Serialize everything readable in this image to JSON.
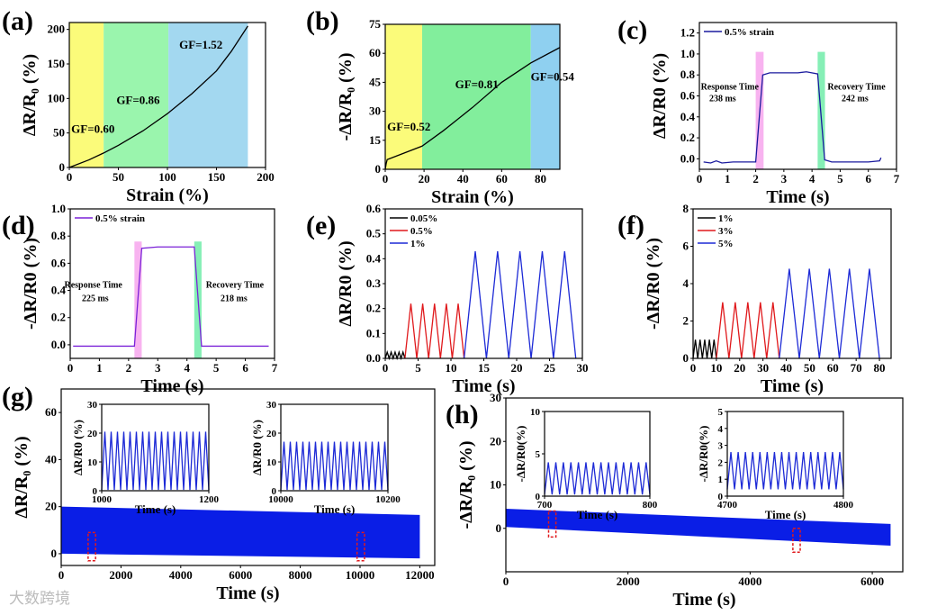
{
  "watermark": "大数跨境",
  "chart_data": [
    {
      "id": "a",
      "label": "(a)",
      "type": "line",
      "xlabel": "Strain (%)",
      "ylabel": "ΔR/R₀ (%)",
      "xlim": [
        0,
        200
      ],
      "ylim": [
        0,
        210
      ],
      "xticks": [
        0,
        50,
        100,
        150,
        200
      ],
      "yticks": [
        0,
        50,
        100,
        150,
        200
      ],
      "regions": [
        {
          "x": [
            0,
            35
          ],
          "color": "#fbfb7a"
        },
        {
          "x": [
            35,
            101
          ],
          "color": "#9af5ad"
        },
        {
          "x": [
            101,
            182
          ],
          "color": "#a3d8f0"
        }
      ],
      "series": [
        {
          "name": "curve",
          "color": "#000",
          "x": [
            0,
            20,
            35,
            50,
            75,
            100,
            125,
            150,
            165,
            182
          ],
          "y": [
            0,
            11,
            21,
            32,
            53,
            78,
            107,
            140,
            168,
            205
          ]
        }
      ],
      "annotations": [
        {
          "text": "GF=0.60",
          "x": 2,
          "y": 50
        },
        {
          "text": "GF=0.86",
          "x": 48,
          "y": 92
        },
        {
          "text": "GF=1.52",
          "x": 112,
          "y": 172
        }
      ]
    },
    {
      "id": "b",
      "label": "(b)",
      "type": "line",
      "xlabel": "Strain (%)",
      "ylabel": "-ΔR/R₀ (%)",
      "xlim": [
        0,
        90
      ],
      "ylim": [
        0,
        75
      ],
      "xticks": [
        0,
        20,
        40,
        60,
        80
      ],
      "yticks": [
        0,
        15,
        30,
        45,
        60,
        75
      ],
      "regions": [
        {
          "x": [
            0,
            19
          ],
          "color": "#fbfb7a"
        },
        {
          "x": [
            19,
            75
          ],
          "color": "#82ee9c"
        },
        {
          "x": [
            75,
            90
          ],
          "color": "#8fd0f0"
        }
      ],
      "series": [
        {
          "name": "curve",
          "color": "#000",
          "x": [
            0,
            0.5,
            1,
            19,
            30,
            45,
            60,
            75,
            90
          ],
          "y": [
            0,
            3,
            5,
            12,
            20,
            32,
            45,
            55,
            63
          ]
        }
      ],
      "annotations": [
        {
          "text": "GF=0.52",
          "x": 1,
          "y": 20
        },
        {
          "text": "GF=0.81",
          "x": 36,
          "y": 42
        },
        {
          "text": "GF=0.54",
          "x": 75,
          "y": 46
        }
      ]
    },
    {
      "id": "c",
      "label": "(c)",
      "type": "line",
      "xlabel": "Time (s)",
      "ylabel": "ΔR/R0 (%)",
      "xlim": [
        0,
        7
      ],
      "ylim": [
        -0.1,
        1.3
      ],
      "xticks": [
        0,
        1,
        2,
        3,
        4,
        5,
        6,
        7
      ],
      "yticks": [
        0.0,
        0.2,
        0.4,
        0.6,
        0.8,
        1.0,
        1.2
      ],
      "ydecimals": 1,
      "regions": [
        {
          "x": [
            2.0,
            2.28
          ],
          "y": [
            -0.1,
            1.02
          ],
          "color": "#f8b3f0"
        },
        {
          "x": [
            4.2,
            4.46
          ],
          "y": [
            -0.1,
            1.02
          ],
          "color": "#86efb6"
        }
      ],
      "series": [
        {
          "name": "0.5% strain",
          "color": "#1a1a9e",
          "x": [
            0.15,
            0.4,
            0.6,
            0.8,
            1.2,
            1.6,
            2.0,
            2.25,
            2.5,
            3.5,
            3.8,
            4.2,
            4.45,
            4.7,
            5.5,
            6.0,
            6.4,
            6.45
          ],
          "y": [
            -0.03,
            -0.04,
            -0.02,
            -0.04,
            -0.03,
            -0.03,
            -0.03,
            0.8,
            0.82,
            0.82,
            0.83,
            0.81,
            -0.01,
            -0.03,
            -0.03,
            -0.03,
            -0.02,
            0.01
          ]
        }
      ],
      "legend": true,
      "annotations": [
        {
          "text": "Response Time",
          "x": 0.05,
          "y": 0.66
        },
        {
          "text": "238 ms",
          "x": 0.35,
          "y": 0.55
        },
        {
          "text": "Recovery Time",
          "x": 4.55,
          "y": 0.66
        },
        {
          "text": "242 ms",
          "x": 5.05,
          "y": 0.55
        }
      ]
    },
    {
      "id": "d",
      "label": "(d)",
      "type": "line",
      "xlabel": "Time (s)",
      "ylabel": "-ΔR/R0 (%)",
      "xlim": [
        0,
        7
      ],
      "ylim": [
        -0.1,
        1.0
      ],
      "xticks": [
        0,
        1,
        2,
        3,
        4,
        5,
        6,
        7
      ],
      "yticks": [
        0.0,
        0.2,
        0.4,
        0.6,
        0.8,
        1.0
      ],
      "ydecimals": 1,
      "regions": [
        {
          "x": [
            2.2,
            2.45
          ],
          "y": [
            -0.1,
            0.76
          ],
          "color": "#f8b3f0"
        },
        {
          "x": [
            4.25,
            4.5
          ],
          "y": [
            -0.1,
            0.76
          ],
          "color": "#86efb6"
        }
      ],
      "series": [
        {
          "name": "0.5% strain",
          "color": "#7b22d8",
          "x": [
            0.1,
            1.0,
            2.2,
            2.45,
            3.0,
            4.25,
            4.5,
            5.5,
            6.8
          ],
          "y": [
            -0.01,
            -0.01,
            -0.01,
            0.71,
            0.72,
            0.72,
            -0.01,
            -0.01,
            -0.01
          ]
        }
      ],
      "legend": true,
      "annotations": [
        {
          "text": "Response Time",
          "x": -0.2,
          "y": 0.42
        },
        {
          "text": "225 ms",
          "x": 0.4,
          "y": 0.32
        },
        {
          "text": "Recovery Time",
          "x": 4.65,
          "y": 0.42
        },
        {
          "text": "218 ms",
          "x": 5.15,
          "y": 0.32
        }
      ]
    },
    {
      "id": "e",
      "label": "(e)",
      "type": "line",
      "xlabel": "Time (s)",
      "ylabel": "ΔR/R0 (%)",
      "xlim": [
        0,
        30
      ],
      "ylim": [
        0,
        0.6
      ],
      "xticks": [
        0,
        5,
        10,
        15,
        20,
        25,
        30
      ],
      "yticks": [
        0.0,
        0.1,
        0.2,
        0.3,
        0.4,
        0.5,
        0.6
      ],
      "ydecimals": 1,
      "series": [
        {
          "name": "0.05%",
          "color": "#000",
          "wave": {
            "x_start": 0,
            "x_end": 3,
            "cycles": 5,
            "min": 0,
            "max": 0.025
          }
        },
        {
          "name": "0.5%",
          "color": "#e0191c",
          "wave": {
            "x_start": 3,
            "x_end": 12,
            "cycles": 5,
            "min": 0,
            "max": 0.22
          }
        },
        {
          "name": "1%",
          "color": "#1d2ad6",
          "wave": {
            "x_start": 12,
            "x_end": 29,
            "cycles": 5,
            "min": 0,
            "max": 0.43
          }
        }
      ],
      "legend": true
    },
    {
      "id": "f",
      "label": "(f)",
      "type": "line",
      "xlabel": "Time (s)",
      "ylabel": "-ΔR/R0 (%)",
      "xlim": [
        0,
        85
      ],
      "ylim": [
        0,
        8
      ],
      "xticks": [
        0,
        10,
        20,
        30,
        40,
        50,
        60,
        70,
        80
      ],
      "yticks": [
        0,
        2,
        4,
        6,
        8
      ],
      "series": [
        {
          "name": "1%",
          "color": "#000",
          "wave": {
            "x_start": 0,
            "x_end": 10,
            "cycles": 5,
            "min": 0,
            "max": 1
          }
        },
        {
          "name": "3%",
          "color": "#e0191c",
          "wave": {
            "x_start": 10,
            "x_end": 37,
            "cycles": 5,
            "min": 0,
            "max": 3
          }
        },
        {
          "name": "5%",
          "color": "#1d2ad6",
          "wave": {
            "x_start": 37,
            "x_end": 80,
            "cycles": 5,
            "min": 0,
            "max": 4.8
          }
        }
      ],
      "legend": true
    },
    {
      "id": "g",
      "label": "(g)",
      "type": "area",
      "xlabel": "Time (s)",
      "ylabel": "ΔR/R₀ (%)",
      "xlim": [
        0,
        12500
      ],
      "ylim": [
        -5,
        70
      ],
      "xticks": [
        0,
        2000,
        4000,
        6000,
        8000,
        10000,
        12000
      ],
      "yticks": [
        0,
        20,
        40,
        60
      ],
      "series": [
        {
          "name": "cycling",
          "color": "#0a1ee6",
          "band": {
            "x": [
              0,
              12000
            ],
            "upper": [
              20,
              16.5
            ],
            "lower": [
              0,
              -2
            ]
          }
        }
      ],
      "highlights": [
        {
          "x": [
            900,
            1150
          ],
          "y": [
            -3,
            9
          ]
        },
        {
          "x": [
            9900,
            10150
          ],
          "y": [
            -3,
            9
          ]
        }
      ]
    },
    {
      "id": "g1",
      "inset": true,
      "type": "line",
      "xlabel": "Time (s)",
      "ylabel": "ΔR/R0 (%)",
      "xlim": [
        1000,
        1200
      ],
      "ylim": [
        0,
        30
      ],
      "xticks": [
        1000,
        1200
      ],
      "yticks": [
        0,
        10,
        20,
        30
      ],
      "series": [
        {
          "name": "1000-1200 s",
          "color": "#1d2ad6",
          "wave": {
            "x_start": 1000,
            "x_end": 1200,
            "cycles": 17,
            "min": 0.3,
            "max": 20.5
          }
        }
      ]
    },
    {
      "id": "g2",
      "inset": true,
      "type": "line",
      "xlabel": "Time (s)",
      "ylabel": "ΔR/R0 (%)",
      "xlim": [
        10000,
        10200
      ],
      "ylim": [
        0,
        30
      ],
      "xticks": [
        10000,
        10200
      ],
      "yticks": [
        0,
        10,
        20,
        30
      ],
      "series": [
        {
          "name": "10000-10200 s",
          "color": "#1d2ad6",
          "wave": {
            "x_start": 10000,
            "x_end": 10200,
            "cycles": 17,
            "min": 0.3,
            "max": 17
          }
        }
      ]
    },
    {
      "id": "h",
      "label": "(h)",
      "type": "area",
      "xlabel": "Time (s)",
      "ylabel": "-ΔR/R₀ (%)",
      "xlim": [
        0,
        6500
      ],
      "ylim": [
        -10,
        30
      ],
      "xticks": [
        0,
        2000,
        4000,
        6000
      ],
      "yticks": [
        0,
        10,
        20,
        30
      ],
      "series": [
        {
          "name": "cycling",
          "color": "#0a1ee6",
          "band": {
            "x": [
              0,
              6300
            ],
            "upper": [
              4.5,
              1
            ],
            "lower": [
              0.3,
              -4
            ]
          }
        }
      ],
      "highlights": [
        {
          "x": [
            700,
            820
          ],
          "y": [
            -2,
            4
          ]
        },
        {
          "x": [
            4700,
            4820
          ],
          "y": [
            -5.5,
            0
          ]
        }
      ]
    },
    {
      "id": "h1",
      "inset": true,
      "type": "line",
      "xlabel": "Time (s)",
      "ylabel": "-ΔR/R0(%)",
      "xlim": [
        700,
        800
      ],
      "ylim": [
        0,
        10
      ],
      "xticks": [
        700,
        800
      ],
      "yticks": [
        0,
        5,
        10
      ],
      "series": [
        {
          "name": "700-800 s",
          "color": "#1d2ad6",
          "wave": {
            "x_start": 700,
            "x_end": 800,
            "cycles": 14,
            "min": 0.2,
            "max": 4
          }
        }
      ]
    },
    {
      "id": "h2",
      "inset": true,
      "type": "line",
      "xlabel": "Time (s)",
      "ylabel": "-ΔR/R0(%)",
      "xlim": [
        4700,
        4800
      ],
      "ylim": [
        0,
        5
      ],
      "xticks": [
        4700,
        4800
      ],
      "yticks": [
        0,
        1,
        2,
        3,
        4,
        5
      ],
      "series": [
        {
          "name": "4700-4800 s",
          "color": "#1d2ad6",
          "wave": {
            "x_start": 4700,
            "x_end": 4800,
            "cycles": 16,
            "min": 0.4,
            "max": 2.6
          }
        }
      ]
    }
  ]
}
